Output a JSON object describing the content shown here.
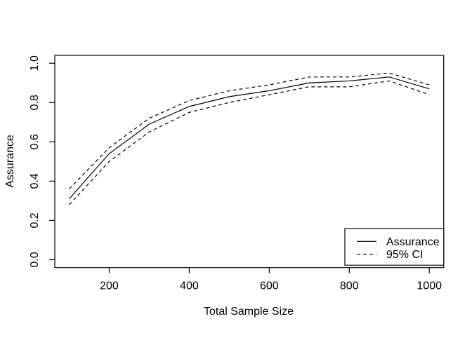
{
  "chart_data": {
    "type": "line",
    "x": [
      100,
      200,
      300,
      400,
      500,
      600,
      700,
      800,
      900,
      1000
    ],
    "series": [
      {
        "name": "Assurance",
        "style": "solid",
        "values": [
          0.31,
          0.54,
          0.69,
          0.78,
          0.83,
          0.86,
          0.9,
          0.91,
          0.93,
          0.87
        ]
      },
      {
        "name": "95% CI upper",
        "style": "dashed",
        "values": [
          0.36,
          0.57,
          0.72,
          0.81,
          0.86,
          0.89,
          0.93,
          0.93,
          0.95,
          0.89
        ]
      },
      {
        "name": "95% CI lower",
        "style": "dashed",
        "values": [
          0.28,
          0.5,
          0.65,
          0.75,
          0.8,
          0.84,
          0.88,
          0.88,
          0.91,
          0.84
        ]
      }
    ],
    "title": "",
    "xlabel": "Total Sample Size",
    "ylabel": "Assurance",
    "xlim": [
      64,
      1036
    ],
    "ylim": [
      -0.04,
      1.04
    ],
    "x_ticks": [
      200,
      400,
      600,
      800,
      1000
    ],
    "y_ticks": [
      "0.0",
      "0.2",
      "0.4",
      "0.6",
      "0.8",
      "1.0"
    ],
    "grid": false,
    "legend": {
      "position": "bottom-right",
      "entries": [
        {
          "label": "Assurance",
          "style": "solid"
        },
        {
          "label": "95% CI",
          "style": "dashed"
        }
      ]
    },
    "colors": {
      "foreground": "#000000",
      "background": "#ffffff"
    }
  }
}
